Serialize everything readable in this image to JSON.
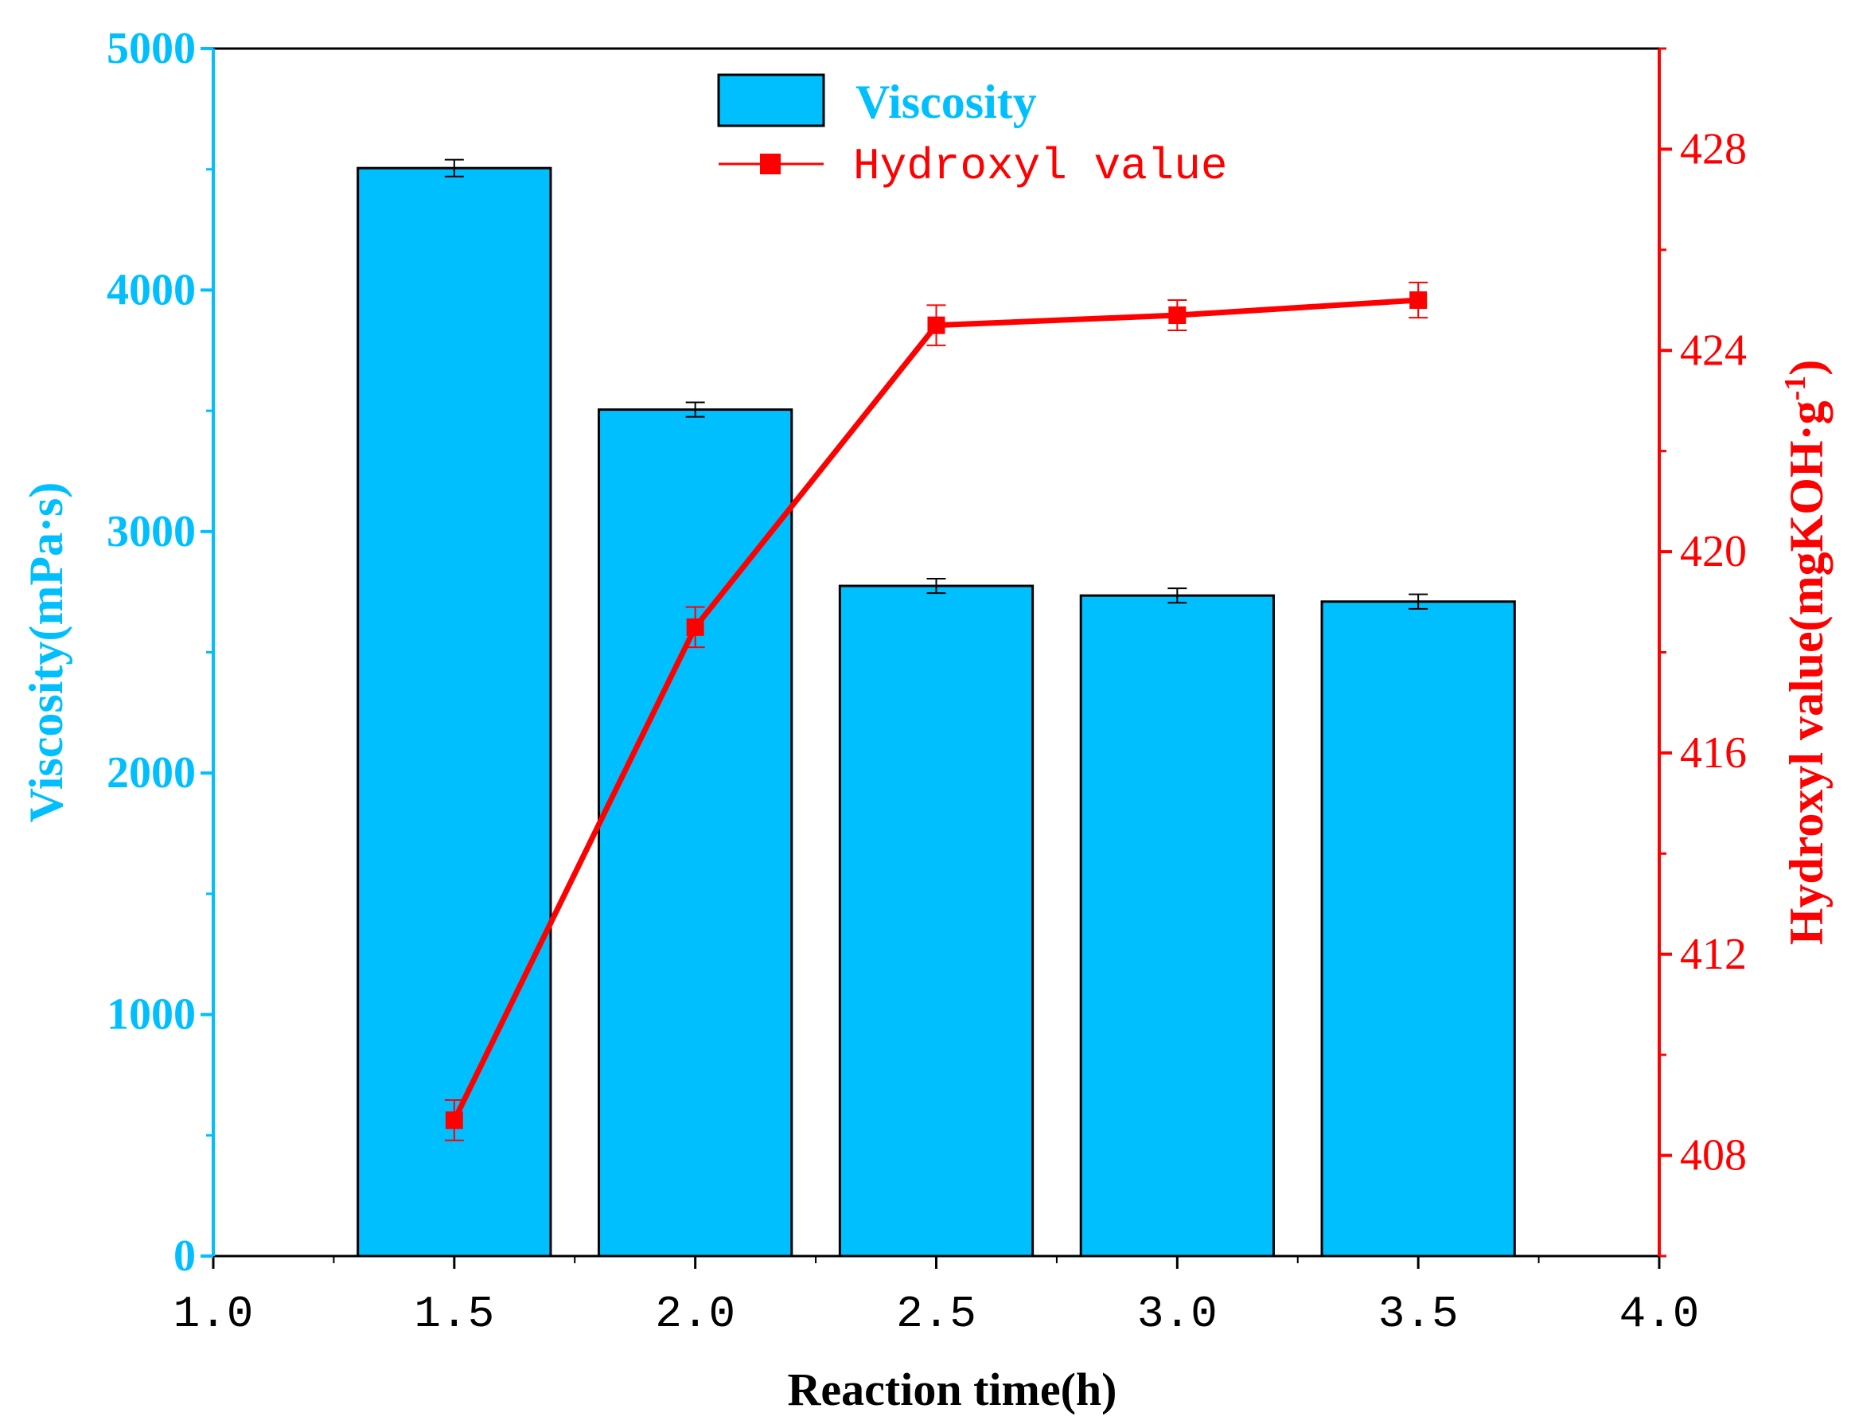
{
  "chart_data": {
    "type": "bar+line",
    "xlabel": "Reaction time(h)",
    "xlim": [
      1.0,
      4.0
    ],
    "x_ticks": [
      1.0,
      1.5,
      2.0,
      2.5,
      3.0,
      3.5,
      4.0
    ],
    "x_tick_labels": [
      "1.0",
      "1.5",
      "2.0",
      "2.5",
      "3.0",
      "3.5",
      "4.0"
    ],
    "x": [
      1.5,
      2.0,
      2.5,
      3.0,
      3.5
    ],
    "bar_width": 0.4,
    "series": [
      {
        "name": "Viscosity",
        "kind": "bar",
        "axis": "left",
        "values": [
          4505,
          3505,
          2775,
          2735,
          2710
        ],
        "errors": [
          35,
          30,
          30,
          30,
          30
        ],
        "color": "#00BFFF"
      },
      {
        "name": "Hydroxyl value",
        "kind": "line",
        "axis": "right",
        "values": [
          408.7,
          418.5,
          424.5,
          424.7,
          425.0
        ],
        "errors": [
          0.4,
          0.4,
          0.4,
          0.3,
          0.35
        ],
        "color": "#FF0000"
      }
    ],
    "y_left": {
      "label": "Viscosity(mPa·s)",
      "lim": [
        0,
        5000
      ],
      "ticks": [
        0,
        1000,
        2000,
        3000,
        4000,
        5000
      ],
      "tick_labels": [
        "0",
        "1000",
        "2000",
        "3000",
        "4000",
        "5000"
      ],
      "color": "#00BFFF"
    },
    "y_right": {
      "label_main": "Hydroxyl value(mgKOH·g",
      "label_sup": "-1",
      "label_end": ")",
      "lim": [
        406,
        430
      ],
      "ticks": [
        408,
        412,
        416,
        420,
        424,
        428
      ],
      "tick_labels": [
        "408",
        "412",
        "416",
        "420",
        "424",
        "428"
      ],
      "color": "#FF0000"
    },
    "legend": {
      "position": "top-center",
      "entries": [
        "Viscosity",
        "Hydroxyl value"
      ]
    },
    "grid": false
  }
}
